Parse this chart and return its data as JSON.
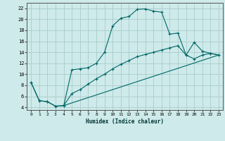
{
  "xlabel": "Humidex (Indice chaleur)",
  "xlim": [
    -0.5,
    23.5
  ],
  "ylim": [
    3.5,
    23
  ],
  "xticks": [
    0,
    1,
    2,
    3,
    4,
    5,
    6,
    7,
    8,
    9,
    10,
    11,
    12,
    13,
    14,
    15,
    16,
    17,
    18,
    19,
    20,
    21,
    22,
    23
  ],
  "yticks": [
    4,
    6,
    8,
    10,
    12,
    14,
    16,
    18,
    20,
    22
  ],
  "bg_color": "#ceeaea",
  "grid_color": "#aacccc",
  "line_color": "#006666",
  "line1_x": [
    0,
    1,
    2,
    3,
    4,
    5,
    6,
    7,
    8,
    9,
    10,
    11,
    12,
    13,
    14,
    15,
    16,
    17,
    18,
    19,
    20,
    21,
    22,
    23
  ],
  "line1_y": [
    8.5,
    5.2,
    5.0,
    4.2,
    4.3,
    10.8,
    11.0,
    11.2,
    12.0,
    14.0,
    18.8,
    20.2,
    20.5,
    21.8,
    21.9,
    21.5,
    21.3,
    17.3,
    17.5,
    13.5,
    15.8,
    14.2,
    13.8,
    13.5
  ],
  "line2_x": [
    0,
    1,
    2,
    3,
    4,
    5,
    6,
    7,
    8,
    9,
    10,
    11,
    12,
    13,
    14,
    15,
    16,
    17,
    18,
    19,
    20,
    21,
    22,
    23
  ],
  "line2_y": [
    8.5,
    5.2,
    5.0,
    4.2,
    4.3,
    6.5,
    7.2,
    8.2,
    9.2,
    10.0,
    11.0,
    11.8,
    12.5,
    13.2,
    13.6,
    14.0,
    14.4,
    14.8,
    15.2,
    13.5,
    12.8,
    13.5,
    13.8,
    13.5
  ],
  "line3_x": [
    4,
    23
  ],
  "line3_y": [
    4.3,
    13.5
  ]
}
